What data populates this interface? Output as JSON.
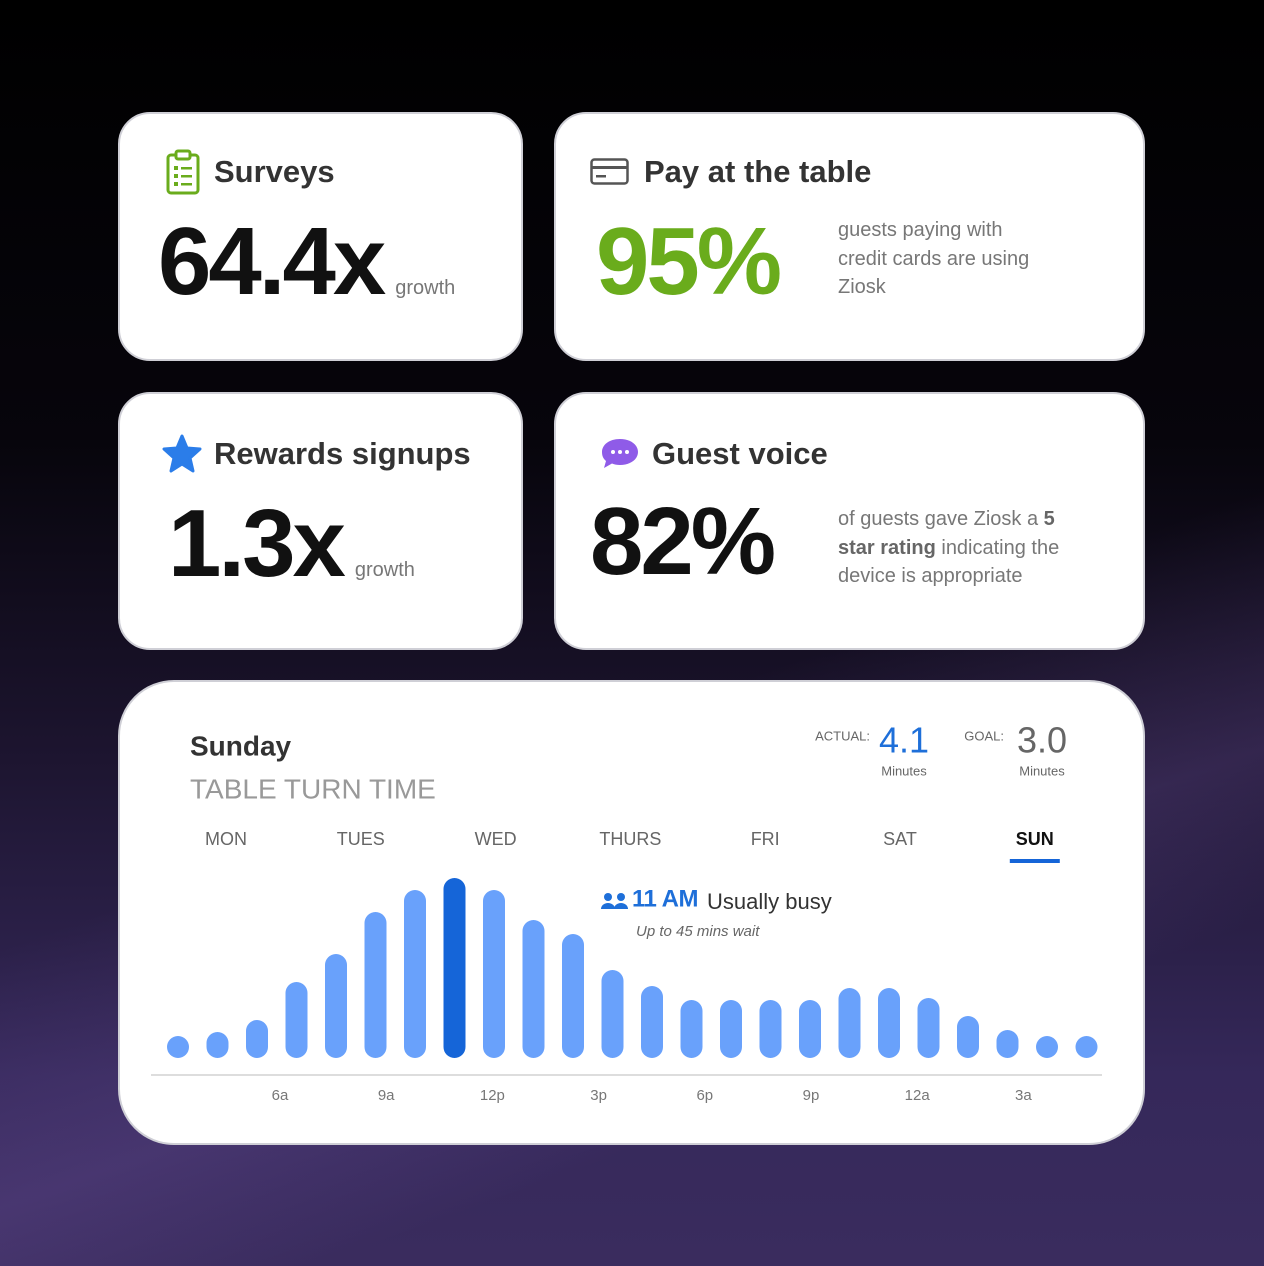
{
  "cards": [
    {
      "title": "Surveys",
      "value": "64.4x",
      "unit": "growth"
    },
    {
      "title": "Pay at the table",
      "value": "95%",
      "description": "guests paying with credit cards are using Ziosk"
    },
    {
      "title": "Rewards signups",
      "value": "1.3x",
      "unit": "growth"
    },
    {
      "title": "Guest voice",
      "value": "82%",
      "description": [
        "of guests gave Ziosk a ",
        "5 star rating",
        " indicating the device is appropriate"
      ]
    }
  ],
  "turn_time": {
    "day": "Sunday",
    "title": "TABLE TURN TIME",
    "actual": {
      "label": "ACTUAL:",
      "value": "4.1",
      "unit": "Minutes"
    },
    "goal": {
      "label": "GOAL:",
      "value": "3.0",
      "unit": "Minutes"
    },
    "days": [
      "MON",
      "TUES",
      "WED",
      "THURS",
      "FRI",
      "SAT",
      "SUN"
    ],
    "selected_day": 6,
    "busy": {
      "time": "11 AM",
      "status": "Usually busy",
      "wait": "Up to 45 mins wait"
    }
  },
  "chart_data": {
    "type": "bar",
    "values": [
      11,
      13,
      19,
      38,
      52,
      73,
      84,
      90,
      84,
      69,
      62,
      44,
      36,
      29,
      29,
      29,
      29,
      35,
      35,
      30,
      21,
      14,
      11,
      11
    ],
    "ylim": [
      0,
      100
    ],
    "color": "#69a1fb",
    "highlight_index": 7,
    "highlight_color": "#1565d8",
    "xtick_labels": [
      "6a",
      "9a",
      "12p",
      "3p",
      "6p",
      "9p",
      "12a",
      "3a"
    ]
  }
}
